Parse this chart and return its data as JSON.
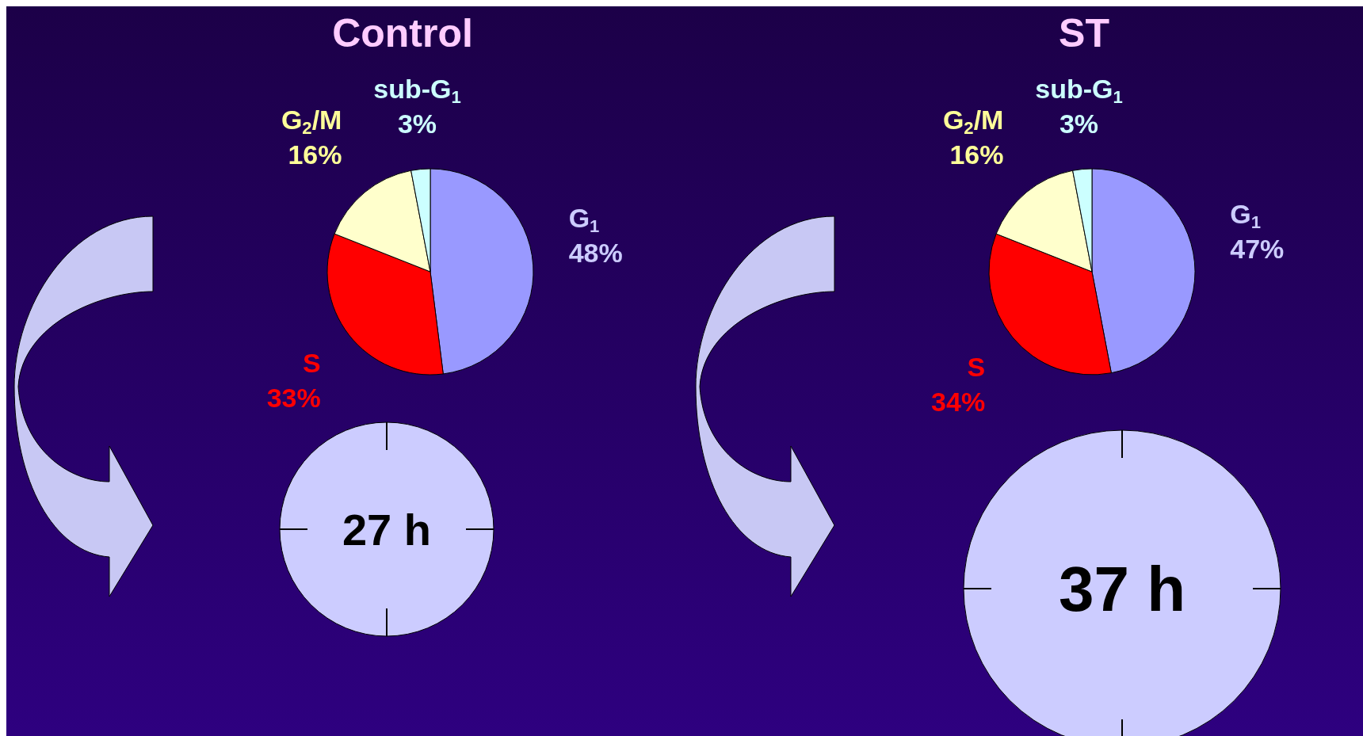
{
  "chart_data": [
    {
      "type": "pie",
      "title": "Control",
      "categories": [
        "G$_{1}$",
        "S",
        "G$_{2}$/M",
        "sub-G$_{1}$"
      ],
      "values": [
        48,
        33,
        16,
        3
      ],
      "colors": [
        "#9999ff",
        "#ff0000",
        "#ffffcc",
        "#ccffff"
      ],
      "value_labels": [
        "48%",
        "33%",
        "16%",
        "3%"
      ],
      "annotations": [
        "27 h"
      ]
    },
    {
      "type": "pie",
      "title": "ST",
      "categories": [
        "G$_{1}$",
        "S",
        "G$_{2}$/M",
        "sub-G$_{1}$"
      ],
      "values": [
        47,
        34,
        16,
        3
      ],
      "colors": [
        "#9999ff",
        "#ff0000",
        "#ffffcc",
        "#ccffff"
      ],
      "value_labels": [
        "47%",
        "34%",
        "16%",
        "3%"
      ],
      "annotations": [
        "37 h"
      ]
    }
  ]
}
